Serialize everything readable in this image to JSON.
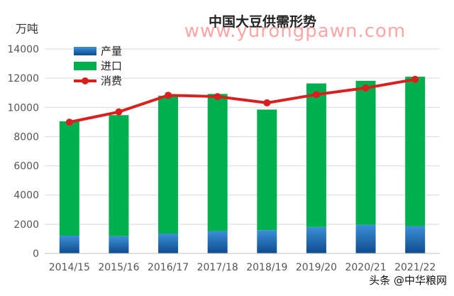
{
  "chart_data": {
    "type": "bar",
    "title": "中国大豆供需形势",
    "ylabel": "万吨",
    "xlabel": "",
    "ylim": [
      0,
      14000
    ],
    "yticks": [
      0,
      2000,
      4000,
      6000,
      8000,
      10000,
      12000,
      14000
    ],
    "grid": true,
    "legend_position": "top-left",
    "categories": [
      "2014/15",
      "2015/16",
      "2016/17",
      "2017/18",
      "2018/19",
      "2019/20",
      "2020/21",
      "2021/22"
    ],
    "series": [
      {
        "name": "产量",
        "type": "bar",
        "stack": "total",
        "color": "#1c6cb5",
        "values": [
          1215,
          1179,
          1360,
          1528,
          1597,
          1810,
          1960,
          1870
        ]
      },
      {
        "name": "进口",
        "type": "bar",
        "stack": "total",
        "color": "#00b04f",
        "values": [
          7835,
          8291,
          9440,
          9392,
          8253,
          9830,
          9860,
          10230
        ]
      },
      {
        "name": "消费",
        "type": "line",
        "color": "#d9201e",
        "values": [
          8990,
          9690,
          10830,
          10740,
          10310,
          10880,
          11330,
          11920
        ]
      }
    ]
  },
  "watermark": "www.yurongpawn.com",
  "attribution": "头条 @中华粮网"
}
